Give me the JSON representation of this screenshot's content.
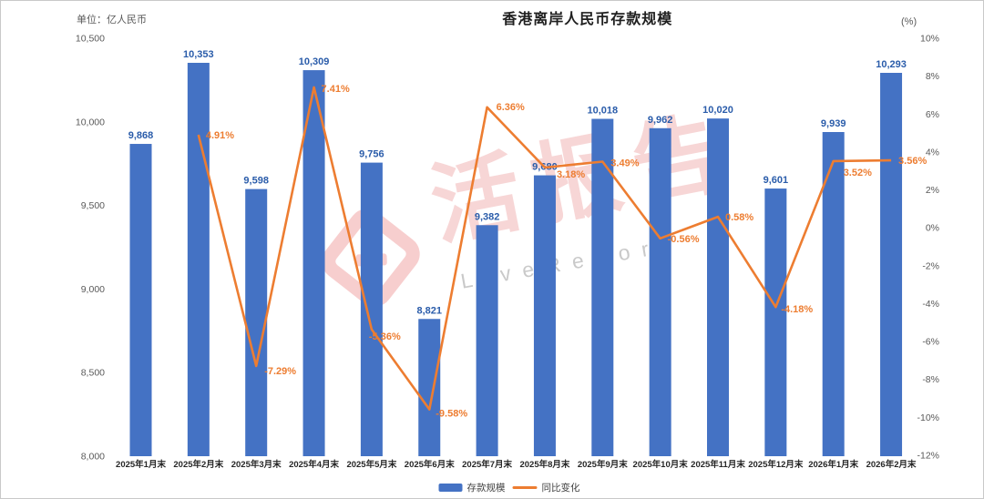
{
  "header": {
    "title": "香港离岸人民币存款规模",
    "left_unit": "单位：亿人民币",
    "right_unit": "(%)"
  },
  "legend": {
    "bar_label": "存款规模",
    "line_label": "同比变化"
  },
  "watermark": {
    "cn": "活报告",
    "en": "LiveReport"
  },
  "colors": {
    "bar": "#4472C4",
    "bar_label": "#2A5CAA",
    "line": "#ED7D31",
    "line_label": "#ED7D31",
    "axis_text": "#595959",
    "x_label_text": "#262626"
  },
  "chart_data": {
    "type": "bar",
    "combo": "bar+line",
    "title": "香港离岸人民币存款规模",
    "categories": [
      "2025年1月末",
      "2025年2月末",
      "2025年3月末",
      "2025年4月末",
      "2025年5月末",
      "2025年6月末",
      "2025年7月末",
      "2025年8月末",
      "2025年9月末",
      "2025年10月末",
      "2025年11月末",
      "2025年12月末",
      "2026年1月末",
      "2026年2月末"
    ],
    "series": [
      {
        "name": "存款规模",
        "type": "bar",
        "axis": "left",
        "values": [
          9868,
          10353,
          9598,
          10309,
          9756,
          8821,
          9382,
          9680,
          10018,
          9962,
          10020,
          9601,
          9939,
          10293
        ],
        "labels": [
          "9,868",
          "10,353",
          "9,598",
          "10,309",
          "9,756",
          "8,821",
          "9,382",
          "9,680",
          "10,018",
          "9,962",
          "10,020",
          "9,601",
          "9,939",
          "10,293"
        ]
      },
      {
        "name": "同比变化",
        "type": "line",
        "axis": "right",
        "values": [
          null,
          4.91,
          -7.29,
          7.41,
          -5.36,
          -9.58,
          6.36,
          3.18,
          3.49,
          -0.56,
          0.58,
          -4.18,
          3.52,
          3.56
        ],
        "labels": [
          "",
          "4.91%",
          "-7.29%",
          "7.41%",
          "-5.36%",
          "-9.58%",
          "6.36%",
          "3.18%",
          "3.49%",
          "-0.56%",
          "0.58%",
          "-4.18%",
          "3.52%",
          "3.56%"
        ]
      }
    ],
    "left_axis": {
      "range": [
        8000,
        10500
      ],
      "tick_values": [
        10500,
        10000,
        9500,
        9000,
        8500,
        8000
      ],
      "tick_labels": [
        "10,500",
        "10,000",
        "9,500",
        "9,000",
        "8,500",
        "8,000"
      ]
    },
    "right_axis": {
      "range": [
        -12,
        10
      ],
      "tick_values": [
        10,
        8,
        6,
        4,
        2,
        0,
        -2,
        -4,
        -6,
        -8,
        -10,
        -12
      ],
      "tick_labels": [
        "10%",
        "8%",
        "6%",
        "4%",
        "2%",
        "0%",
        "-2%",
        "-4%",
        "-6%",
        "-8%",
        "-10%",
        "-12%"
      ]
    },
    "grid": false,
    "legend_position": "bottom"
  }
}
